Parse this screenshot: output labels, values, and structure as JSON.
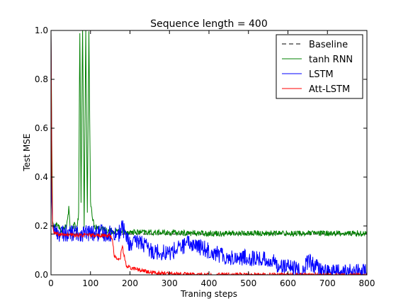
{
  "chart_data": {
    "type": "line",
    "title": "Sequence length = 400",
    "xlabel": "Traning steps",
    "ylabel": "Test MSE",
    "xlim": [
      0,
      800
    ],
    "ylim": [
      0,
      1.0
    ],
    "xticks": [
      0,
      100,
      200,
      300,
      400,
      500,
      600,
      700,
      800
    ],
    "yticks": [
      0.0,
      0.2,
      0.4,
      0.6,
      0.8,
      1.0
    ],
    "grid": false,
    "legend_position": "top-right",
    "series": [
      {
        "name": "Baseline",
        "color": "#000000",
        "style": "dashed",
        "x": [
          0,
          800
        ],
        "y": [
          0.167,
          0.167
        ]
      },
      {
        "name": "tanh RNN",
        "color": "#008000",
        "style": "noisy",
        "noise_amp": 0.012,
        "x": [
          0,
          2,
          4,
          8,
          15,
          25,
          40,
          45,
          50,
          60,
          65,
          70,
          73,
          76,
          80,
          84,
          88,
          92,
          96,
          100,
          105,
          110,
          120,
          150,
          200,
          300,
          400,
          500,
          600,
          700,
          800
        ],
        "y": [
          1.0,
          0.55,
          0.22,
          0.19,
          0.21,
          0.18,
          0.2,
          0.27,
          0.17,
          0.21,
          0.18,
          0.25,
          1.0,
          0.3,
          1.0,
          0.2,
          1.0,
          0.25,
          1.0,
          0.3,
          0.23,
          0.2,
          0.19,
          0.18,
          0.175,
          0.172,
          0.17,
          0.17,
          0.17,
          0.17,
          0.17
        ]
      },
      {
        "name": "LSTM",
        "color": "#0000ff",
        "style": "noisy",
        "noise_amp": 0.035,
        "x": [
          0,
          2,
          4,
          8,
          15,
          30,
          60,
          100,
          150,
          175,
          180,
          200,
          225,
          250,
          300,
          350,
          400,
          450,
          500,
          550,
          580,
          600,
          640,
          650,
          680,
          700,
          800
        ],
        "y": [
          1.0,
          0.3,
          0.2,
          0.19,
          0.17,
          0.17,
          0.17,
          0.17,
          0.17,
          0.17,
          0.2,
          0.12,
          0.14,
          0.1,
          0.09,
          0.13,
          0.1,
          0.07,
          0.07,
          0.06,
          0.04,
          0.03,
          0.01,
          0.06,
          0.02,
          0.01,
          0.01
        ]
      },
      {
        "name": "Att-LSTM",
        "color": "#ff0000",
        "style": "noisy",
        "noise_amp": 0.008,
        "x": [
          0,
          2,
          4,
          8,
          20,
          50,
          100,
          150,
          155,
          160,
          165,
          175,
          180,
          190,
          200,
          250,
          300,
          350,
          400,
          500,
          600,
          800
        ],
        "y": [
          1.0,
          0.4,
          0.2,
          0.17,
          0.165,
          0.163,
          0.162,
          0.16,
          0.15,
          0.08,
          0.07,
          0.06,
          0.12,
          0.04,
          0.03,
          0.01,
          0.005,
          0.002,
          0.0,
          0.0,
          0.0,
          0.0
        ]
      }
    ]
  }
}
